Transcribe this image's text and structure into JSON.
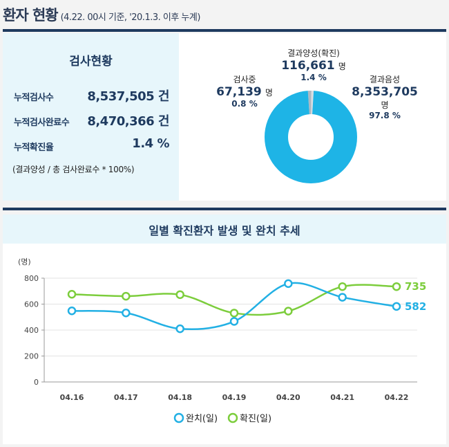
{
  "header": {
    "title": "환자 현황",
    "subtitle": "(4.22. 00시 기준, '20.1.3. 이후 누계)"
  },
  "test_status": {
    "title": "검사현황",
    "rows": [
      {
        "label": "누적검사수",
        "value": "8,537,505 건"
      },
      {
        "label": "누적검사완료수",
        "value": "8,470,366 건"
      },
      {
        "label": "누적확진율",
        "value": "1.4 %"
      }
    ],
    "note": "(결과양성 / 총 검사완료수 * 100%)"
  },
  "donut": {
    "colors": {
      "negative": "#1eb4e6",
      "positive": "#aeb8c2",
      "testing": "#d9dee3"
    },
    "segments": [
      {
        "key": "testing",
        "label": "검사중",
        "value": "67,139",
        "unit": "명",
        "pct": "0.8 %",
        "percent": 0.8
      },
      {
        "key": "positive",
        "label": "결과양성(확진)",
        "value": "116,661",
        "unit": "명",
        "pct": "1.4 %",
        "percent": 1.4
      },
      {
        "key": "negative",
        "label": "결과음성",
        "value": "8,353,705",
        "unit": "명",
        "pct": "97.8 %",
        "percent": 97.8
      }
    ]
  },
  "chart_data": {
    "type": "line",
    "title": "일별 확진환자 발생 및 완치 추세",
    "ylabel": "(명)",
    "categories": [
      "04.16",
      "04.17",
      "04.18",
      "04.19",
      "04.20",
      "04.21",
      "04.22"
    ],
    "ylim": [
      0,
      800
    ],
    "yticks": [
      0,
      200,
      400,
      600,
      800
    ],
    "grid": true,
    "legend": "bottom",
    "series": [
      {
        "name": "완치(일)",
        "color": "#22b0e4",
        "values": [
          548,
          532,
          410,
          467,
          758,
          653,
          582
        ],
        "end_label": "582"
      },
      {
        "name": "확진(일)",
        "color": "#7ccd3c",
        "values": [
          676,
          661,
          673,
          531,
          546,
          735,
          735
        ],
        "end_label": "735"
      }
    ]
  }
}
